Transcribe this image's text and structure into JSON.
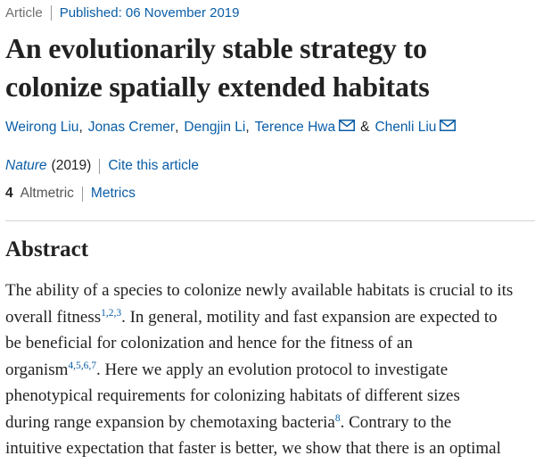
{
  "article": {
    "type": "Article",
    "published": "Published: 06 November 2019",
    "title_lines": [
      "An evolutionarily stable strategy to",
      "colonize spatially extended habitats"
    ]
  },
  "authors": [
    {
      "name": "Weirong Liu",
      "email": false
    },
    {
      "name": "Jonas Cremer",
      "email": false
    },
    {
      "name": "Dengjin Li",
      "email": false
    },
    {
      "name": "Terence Hwa",
      "email": true
    },
    {
      "name": "Chenli Liu",
      "email": true
    }
  ],
  "authors_separator": "&",
  "citation": {
    "journal": "Nature",
    "year": "(2019)",
    "cite_link": "Cite this article"
  },
  "metrics": {
    "count": "4",
    "altmetric_label": "Altmetric",
    "metrics_link": "Metrics"
  },
  "abstract": {
    "heading": "Abstract",
    "lines": [
      {
        "t1": "The ability of a species to colonize newly available habitats is crucial to its"
      },
      {
        "t1": "overall fitness",
        "sup": "1,2,3",
        "t2": ". In general, motility and fast expansion are expected to"
      },
      {
        "t1": "be beneficial for colonization and hence for the fitness of an"
      },
      {
        "t1": "organism",
        "sup": "4,5,6,7",
        "t2": ". Here we apply an evolution protocol to investigate"
      },
      {
        "t1": "phenotypical requirements for colonizing habitats of different sizes"
      },
      {
        "t1": "during range expansion by chemotaxing bacteria",
        "sup": "8",
        "t2": ". Contrary to the"
      },
      {
        "t1": "intuitive expectation that faster is better, we show that there is an optimal"
      }
    ]
  },
  "colors": {
    "link": "#0a5ea7",
    "text": "#222222",
    "muted": "#6f6f6f"
  }
}
